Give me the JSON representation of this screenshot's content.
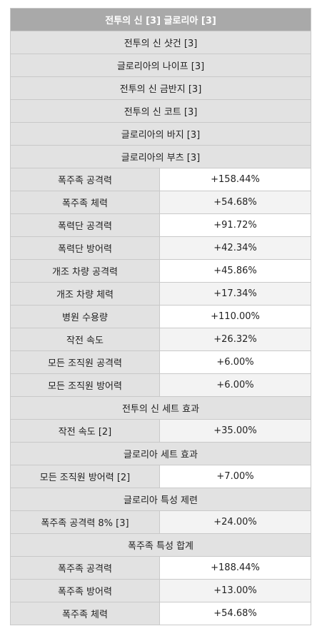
{
  "title": "전투의 신 [3] 글로리아 [3]",
  "items": [
    "전투의 신 샷건 [3]",
    "글로리아의 나이프 [3]",
    "전투의 신 금반지 [3]",
    "전투의 신 코트 [3]",
    "글로리아의 바지 [3]",
    "글로리아의 부츠 [3]"
  ],
  "stats": [
    {
      "label": "폭주족 공격력",
      "value": "+158.44%"
    },
    {
      "label": "폭주족 체력",
      "value": "+54.68%"
    },
    {
      "label": "폭력단 공격력",
      "value": "+91.72%"
    },
    {
      "label": "폭력단 방어력",
      "value": "+42.34%"
    },
    {
      "label": "개조 차량 공격력",
      "value": "+45.86%"
    },
    {
      "label": "개조 차량 체력",
      "value": "+17.34%"
    },
    {
      "label": "병원 수용량",
      "value": "+110.00%"
    },
    {
      "label": "작전 속도",
      "value": "+26.32%"
    },
    {
      "label": "모든 조직원 공격력",
      "value": "+6.00%"
    },
    {
      "label": "모든 조직원 방어력",
      "value": "+6.00%"
    }
  ],
  "set_effect_1": {
    "title": "전투의 신 세트 효과",
    "label": "작전 속도 [2]",
    "value": "+35.00%"
  },
  "set_effect_2": {
    "title": "글로리아 세트 효과",
    "label": "모든 조직원 방어력 [2]",
    "value": "+7.00%"
  },
  "trait_limit": {
    "title": "글로리아 특성 제련",
    "label": "폭주족 공격력 8% [3]",
    "value": "+24.00%"
  },
  "trait_total": {
    "title": "폭주족 특성 합계",
    "rows": [
      {
        "label": "폭주족 공격력",
        "value": "+188.44%"
      },
      {
        "label": "폭주족 방어력",
        "value": "+13.00%"
      },
      {
        "label": "폭주족 체력",
        "value": "+54.68%"
      }
    ]
  }
}
